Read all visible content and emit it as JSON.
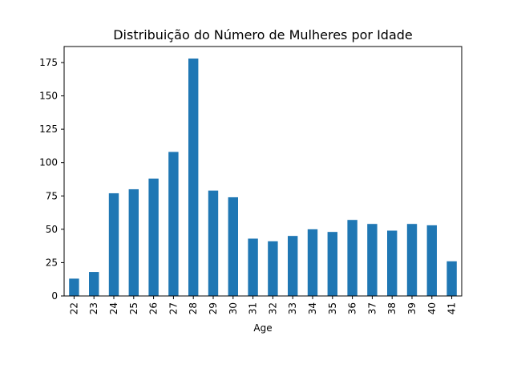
{
  "chart_data": {
    "type": "bar",
    "title": "Distribuição do Número de Mulheres por Idade",
    "xlabel": "Age",
    "ylabel": "",
    "categories": [
      "22",
      "23",
      "24",
      "25",
      "26",
      "27",
      "28",
      "29",
      "30",
      "31",
      "32",
      "33",
      "34",
      "35",
      "36",
      "37",
      "38",
      "39",
      "40",
      "41"
    ],
    "values": [
      13,
      18,
      77,
      80,
      88,
      108,
      178,
      79,
      74,
      43,
      41,
      45,
      50,
      48,
      57,
      54,
      49,
      54,
      53,
      26
    ],
    "ylim": [
      0,
      187
    ],
    "yticks": [
      0,
      25,
      50,
      75,
      100,
      125,
      150,
      175
    ],
    "ytick_labels": [
      "0",
      "25",
      "50",
      "75",
      "100",
      "125",
      "150",
      "175"
    ],
    "bar_color": "#1f77b4",
    "grid": false,
    "legend": "none"
  }
}
